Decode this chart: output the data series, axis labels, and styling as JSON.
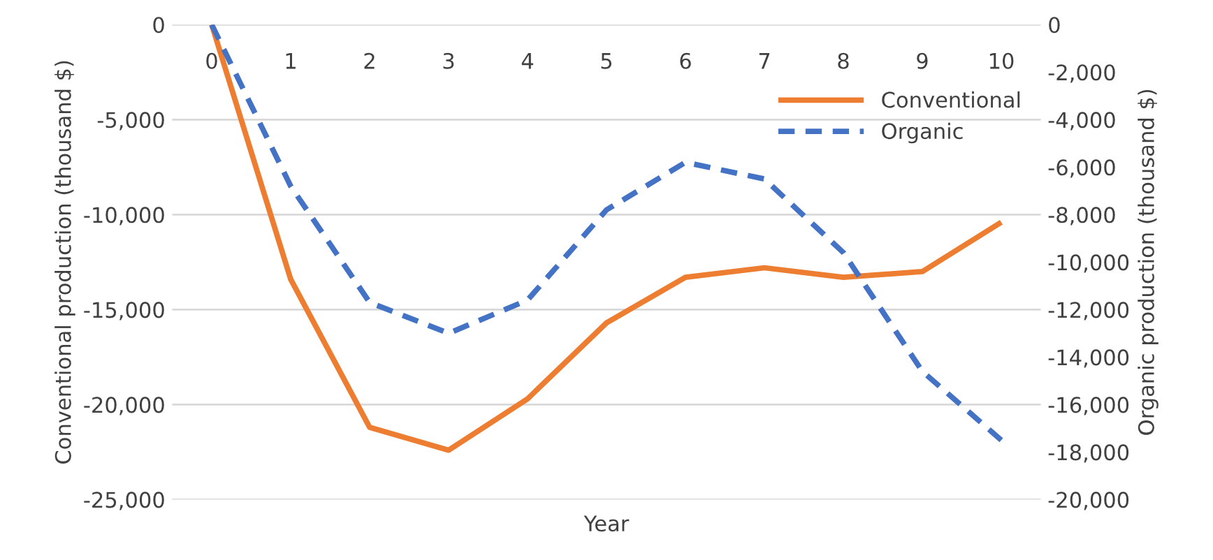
{
  "chart_data": {
    "type": "line",
    "xlabel": "Year",
    "ylabel": "Conventional production (thousand $)",
    "y2label": "Organic production (thousand $)",
    "categories": [
      "0",
      "1",
      "2",
      "3",
      "4",
      "5",
      "6",
      "7",
      "8",
      "9",
      "10"
    ],
    "series": [
      {
        "name": "Conventional",
        "color": "#ed7d31",
        "line_style": "solid",
        "values": [
          0,
          -13400,
          -21200,
          -22400,
          -19700,
          -15700,
          -13300,
          -12800,
          -13300,
          -13000,
          -10400
        ]
      },
      {
        "name": "Organic",
        "color": "#4472c4",
        "line_style": "dashed",
        "axis": "y2",
        "values": [
          0,
          -6800,
          -11700,
          -13000,
          -11600,
          -7800,
          -5800,
          -6500,
          -9600,
          -14600,
          -17500
        ]
      }
    ],
    "ylim": [
      -25000,
      0
    ],
    "yticks": [
      {
        "value": -25000,
        "label": "-25,000"
      },
      {
        "value": -20000,
        "label": "-20,000"
      },
      {
        "value": -15000,
        "label": "-15,000"
      },
      {
        "value": -10000,
        "label": "-10,000"
      },
      {
        "value": -5000,
        "label": "-5,000"
      },
      0
    ],
    "y2lim": [
      -20000,
      0
    ],
    "y2ticks": [
      {
        "value": -20000,
        "label": "-20,000"
      },
      {
        "value": -18000,
        "label": "-18,000"
      },
      {
        "value": -16000,
        "label": "-16,000"
      },
      {
        "value": -14000,
        "label": "-14,000"
      },
      {
        "value": -12000,
        "label": "-12,000"
      },
      {
        "value": -10000,
        "label": "-10,000"
      },
      {
        "value": -8000,
        "label": "-8,000"
      },
      {
        "value": -6000,
        "label": "-6,000"
      },
      {
        "value": -4000,
        "label": "-4,000"
      },
      {
        "value": -2000,
        "label": "-2,000"
      },
      0
    ],
    "grid": "y",
    "legend": "top right",
    "marker": "none"
  }
}
